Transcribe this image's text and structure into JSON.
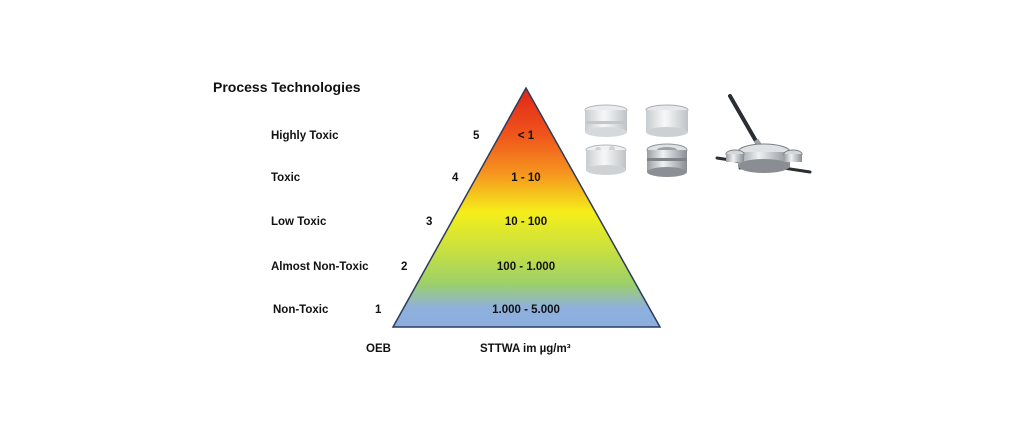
{
  "title": "Process Technologies",
  "levels": [
    {
      "label": "Highly Toxic",
      "oeb": "5",
      "range": "< 1"
    },
    {
      "label": "Toxic",
      "oeb": "4",
      "range": "1 - 10"
    },
    {
      "label": "Low Toxic",
      "oeb": "3",
      "range": "10 - 100"
    },
    {
      "label": "Almost Non-Toxic",
      "oeb": "2",
      "range": "100 - 1.000"
    },
    {
      "label": "Non-Toxic",
      "oeb": "1",
      "range": "1.000 - 5.000"
    }
  ],
  "axis": {
    "oeb_label": "OEB",
    "stt_label": "STTWA im µg/m³"
  },
  "colors": {
    "top": "#e22a1e",
    "orange": "#f6961f",
    "yellow": "#f5ee1a",
    "green": "#9cd25c",
    "blue": "#8fb0dd",
    "outline": "#2b3c5c"
  },
  "images": [
    {
      "icon": "split-valve-white-icon"
    },
    {
      "icon": "split-valve-steel-icon"
    },
    {
      "icon": "containment-press-icon"
    }
  ]
}
